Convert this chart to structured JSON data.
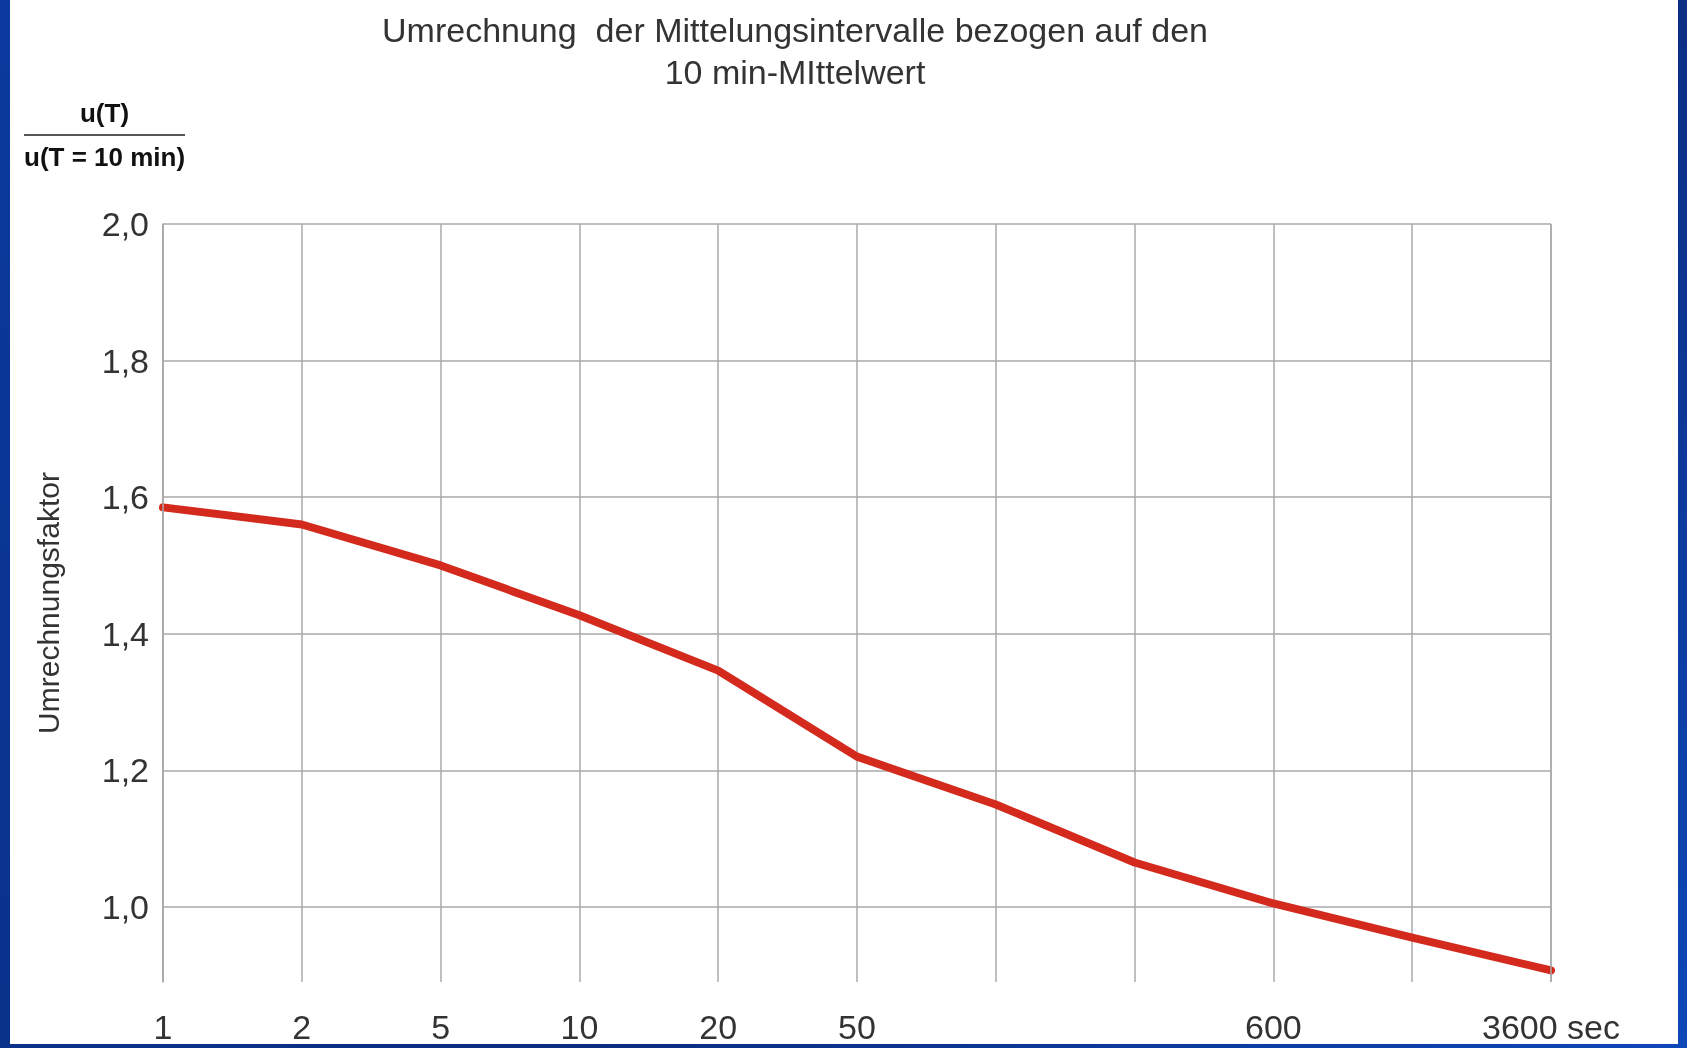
{
  "chart_data": {
    "type": "line",
    "title": "Umrechnung  der Mittelungsintervalle bezogen auf den\n10 min-MIttelwert",
    "ylabel": "Umrechnungsfaktor",
    "annotations": [
      "u(T)",
      "u(T = 10 min)"
    ],
    "categories": [
      "1",
      "2",
      "5",
      "10",
      "20",
      "50",
      null,
      null,
      "600",
      null,
      "3600 sec"
    ],
    "series": [
      {
        "color": "#d42a1e",
        "values": [
          1.585,
          1.56,
          1.5,
          1.427,
          1.346,
          1.22,
          1.15,
          1.065,
          1.005,
          0.955,
          0.907
        ]
      }
    ],
    "ylim": [
      0.89,
      2.0
    ],
    "yticks": [
      {
        "value": 1.0,
        "label": "1,0"
      },
      {
        "value": 1.2,
        "label": "1,2"
      },
      {
        "value": 1.4,
        "label": "1,4"
      },
      {
        "value": 1.6,
        "label": "1,6"
      },
      {
        "value": 1.8,
        "label": "1,8"
      },
      {
        "value": 2.0,
        "label": "2,0"
      }
    ],
    "grid": true,
    "marker": "none",
    "line_style": "solid"
  }
}
